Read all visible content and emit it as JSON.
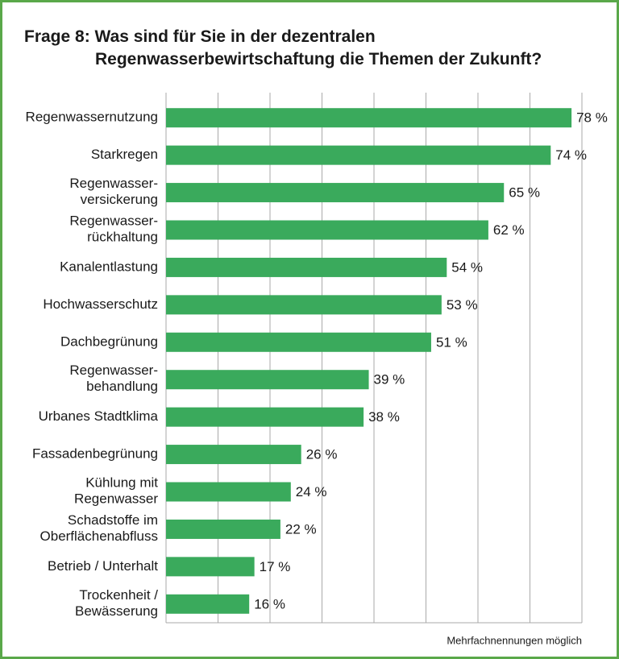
{
  "chart_data": {
    "type": "bar",
    "orientation": "horizontal",
    "title": "Frage 8: Was sind für Sie in der dezentralen\nRegenwasserbewirtschaftung die Themen der Zukunft?",
    "categories": [
      "Regenwassernutzung",
      "Starkregen",
      "Regenwasser-\nversickerung",
      "Regenwasser-\nrückhaltung",
      "Kanalentlastung",
      "Hochwasserschutz",
      "Dachbegrünung",
      "Regenwasser-\nbehandlung",
      "Urbanes Stadtklima",
      "Fassadenbegrünung",
      "Kühlung mit\nRegenwasser",
      "Schadstoffe im\nOberflächenabfluss",
      "Betrieb / Unterhalt",
      "Trockenheit /\nBewässerung"
    ],
    "values": [
      78,
      74,
      65,
      62,
      54,
      53,
      51,
      39,
      38,
      26,
      24,
      22,
      17,
      16
    ],
    "value_labels": [
      "78 %",
      "74 %",
      "65 %",
      "62 %",
      "54 %",
      "53 %",
      "51 %",
      "39 %",
      "38 %",
      "26 %",
      "24 %",
      "22 %",
      "17 %",
      "16 %"
    ],
    "color": "#3aaa5c",
    "xlim": [
      0,
      80
    ],
    "xticks": [
      0,
      10,
      20,
      30,
      40,
      50,
      60,
      70,
      80
    ],
    "grid": true,
    "note": "Mehrfachnennungen möglich"
  }
}
